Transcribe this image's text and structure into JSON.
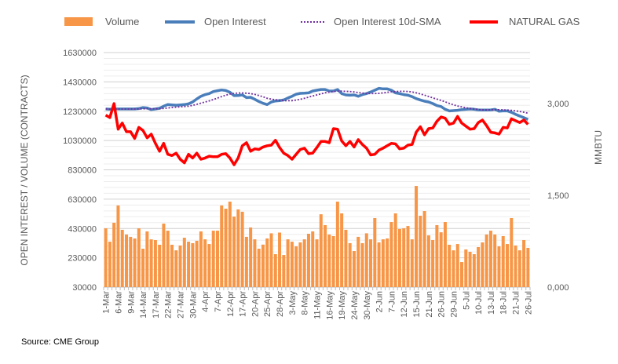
{
  "chart_data": {
    "type": "bar+line",
    "source": "Source: CME Group",
    "ylabel_left": "OPEN INTEREST / VOLUME (CONTRACTS)",
    "ylabel_right": "MMBTU",
    "ylim_left": [
      30000,
      1630000
    ],
    "yticks_left": [
      "30000",
      "230000",
      "430000",
      "630000",
      "830000",
      "1030000",
      "1230000",
      "1430000",
      "1630000"
    ],
    "ylim_right": [
      0,
      3.833
    ],
    "yticks_right": [
      {
        "value": 0,
        "label": "0,000"
      },
      {
        "value": 1.5,
        "label": "1,500"
      },
      {
        "value": 3.0,
        "label": "3,000"
      }
    ],
    "grid": true,
    "legend_position": "top",
    "x_tick_labels": [
      "1-Mar",
      "6-Mar",
      "9-Mar",
      "14-Mar",
      "17-Mar",
      "22-Mar",
      "27-Mar",
      "30-Mar",
      "4-Apr",
      "7-Apr",
      "12-Apr",
      "17-Apr",
      "20-Apr",
      "25-Apr",
      "28-Apr",
      "3-May",
      "8-May",
      "11-May",
      "16-May",
      "19-May",
      "24-May",
      "30-May",
      "2-Jun",
      "7-Jun",
      "12-Jun",
      "15-Jun",
      "21-Jun",
      "26-Jun",
      "29-Jun",
      "5-Jul",
      "10-Jul",
      "13-Jul",
      "18-Jul",
      "21-Jul",
      "26-Jul"
    ],
    "x_tick_every": 3,
    "series": [
      {
        "name": "Volume",
        "type": "bar",
        "axis": "left",
        "color": "#F79646",
        "values": [
          431000,
          340000,
          469000,
          587000,
          421000,
          389000,
          373000,
          362000,
          431000,
          292000,
          410000,
          356000,
          351000,
          319000,
          463000,
          415000,
          319000,
          281000,
          314000,
          367000,
          340000,
          330000,
          346000,
          410000,
          356000,
          324000,
          415000,
          415000,
          587000,
          565000,
          613000,
          511000,
          560000,
          544000,
          373000,
          437000,
          356000,
          292000,
          320000,
          362000,
          397000,
          255000,
          402000,
          249000,
          356000,
          340000,
          308000,
          335000,
          356000,
          394000,
          410000,
          356000,
          527000,
          453000,
          389000,
          378000,
          613000,
          533000,
          421000,
          330000,
          276000,
          373000,
          330000,
          397000,
          356000,
          501000,
          335000,
          356000,
          362000,
          474000,
          533000,
          426000,
          431000,
          447000,
          356000,
          720000,
          517000,
          549000,
          383000,
          351000,
          453000,
          404000,
          474000,
          319000,
          281000,
          324000,
          201000,
          287000,
          271000,
          255000,
          303000,
          335000,
          389000,
          415000,
          389000,
          308000,
          378000,
          324000,
          501000,
          314000,
          281000,
          351000,
          298000
        ]
      },
      {
        "name": "Open Interest",
        "type": "line",
        "axis": "left",
        "color": "#4A7EBB",
        "values": [
          1245000,
          1243000,
          1245000,
          1245000,
          1245000,
          1245000,
          1245000,
          1245000,
          1248000,
          1255000,
          1252000,
          1241000,
          1245000,
          1250000,
          1264000,
          1275000,
          1273000,
          1271000,
          1273000,
          1275000,
          1280000,
          1293000,
          1314000,
          1332000,
          1343000,
          1350000,
          1364000,
          1370000,
          1375000,
          1371000,
          1359000,
          1336000,
          1337000,
          1341000,
          1323000,
          1325000,
          1311000,
          1296000,
          1284000,
          1275000,
          1293000,
          1300000,
          1302000,
          1307000,
          1320000,
          1332000,
          1346000,
          1352000,
          1353000,
          1355000,
          1368000,
          1373000,
          1378000,
          1378000,
          1368000,
          1368000,
          1378000,
          1350000,
          1341000,
          1339000,
          1341000,
          1332000,
          1343000,
          1350000,
          1361000,
          1373000,
          1386000,
          1382000,
          1382000,
          1373000,
          1355000,
          1350000,
          1343000,
          1339000,
          1329000,
          1316000,
          1307000,
          1298000,
          1293000,
          1282000,
          1268000,
          1262000,
          1243000,
          1232000,
          1234000,
          1236000,
          1241000,
          1243000,
          1245000,
          1243000,
          1239000,
          1238000,
          1238000,
          1239000,
          1243000,
          1230000,
          1232000,
          1232000,
          1222000,
          1209000,
          1197000,
          1186000,
          1173000
        ]
      },
      {
        "name": "Open Interest 10d-SMA",
        "type": "line",
        "axis": "left",
        "color": "#7030A0",
        "style": "dotted",
        "derived_from": "Open Interest",
        "window": 10
      },
      {
        "name": "NATURAL GAS",
        "type": "line",
        "axis": "right",
        "color": "#FF0000",
        "values": [
          2.81,
          2.77,
          3.0,
          2.58,
          2.68,
          2.54,
          2.54,
          2.43,
          2.61,
          2.56,
          2.44,
          2.5,
          2.35,
          2.22,
          2.35,
          2.17,
          2.15,
          2.19,
          2.09,
          2.03,
          2.17,
          2.11,
          2.19,
          2.09,
          2.11,
          2.14,
          2.13,
          2.13,
          2.17,
          2.18,
          2.11,
          2.0,
          2.11,
          2.31,
          2.36,
          2.22,
          2.26,
          2.25,
          2.29,
          2.31,
          2.32,
          2.4,
          2.28,
          2.19,
          2.15,
          2.09,
          2.17,
          2.25,
          2.27,
          2.18,
          2.19,
          2.28,
          2.38,
          2.38,
          2.36,
          2.59,
          2.58,
          2.39,
          2.31,
          2.38,
          2.29,
          2.41,
          2.33,
          2.27,
          2.16,
          2.17,
          2.24,
          2.27,
          2.31,
          2.35,
          2.34,
          2.26,
          2.27,
          2.32,
          2.33,
          2.53,
          2.62,
          2.49,
          2.59,
          2.6,
          2.71,
          2.78,
          2.76,
          2.66,
          2.68,
          2.79,
          2.68,
          2.63,
          2.58,
          2.59,
          2.69,
          2.73,
          2.64,
          2.53,
          2.52,
          2.5,
          2.61,
          2.6,
          2.75,
          2.72,
          2.69,
          2.73,
          2.66
        ]
      }
    ]
  }
}
